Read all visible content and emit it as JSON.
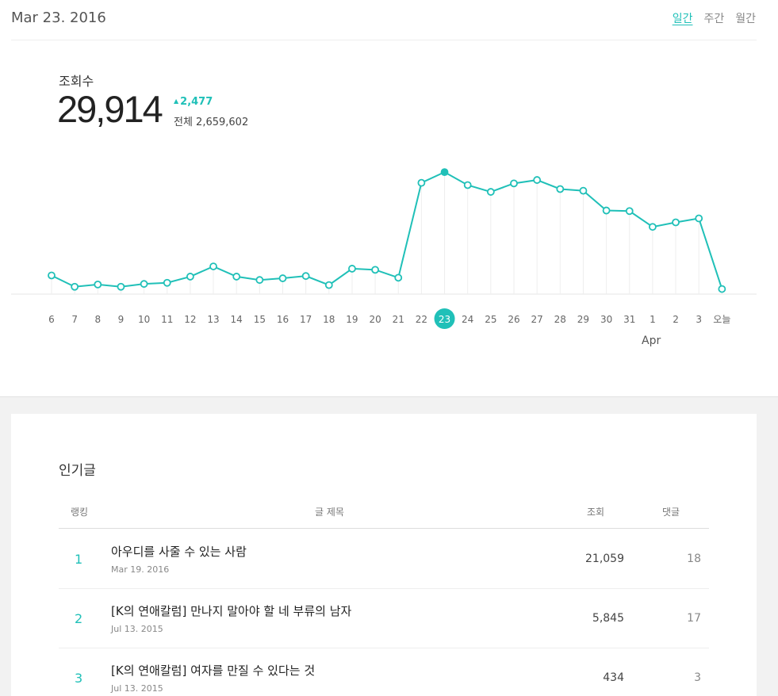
{
  "header": {
    "date": "Mar 23. 2016",
    "periods": [
      "일간",
      "주간",
      "월간"
    ],
    "active_period": "일간"
  },
  "metric": {
    "label": "조회수",
    "value": "29,914",
    "delta": "2,477",
    "total": "전체 2,659,602"
  },
  "chart_data": {
    "type": "line",
    "categories": [
      "6",
      "7",
      "8",
      "9",
      "10",
      "11",
      "12",
      "13",
      "14",
      "15",
      "16",
      "17",
      "18",
      "19",
      "20",
      "21",
      "22",
      "23",
      "24",
      "25",
      "26",
      "27",
      "28",
      "29",
      "30",
      "31",
      "1",
      "2",
      "3",
      "오늘"
    ],
    "extra_xlabel": "Apr",
    "selected": "23",
    "values": [
      3300,
      1300,
      1700,
      1300,
      1800,
      2000,
      3100,
      4900,
      3100,
      2500,
      2800,
      3200,
      1600,
      4500,
      4300,
      2900,
      19700,
      21600,
      19300,
      18100,
      19600,
      20200,
      18600,
      18300,
      14800,
      14700,
      11900,
      12700,
      13400,
      900
    ],
    "ylim": [
      0,
      24000
    ],
    "accent": "#20c0b8"
  },
  "popular": {
    "title": "인기글",
    "headers": {
      "rank": "랭킹",
      "title": "글 제목",
      "views": "조회",
      "comments": "댓글"
    },
    "rows": [
      {
        "rank": "1",
        "title": "아우디를 사줄 수 있는 사람",
        "date": "Mar 19. 2016",
        "views": "21,059",
        "comments": "18"
      },
      {
        "rank": "2",
        "title": "[K의 연애칼럼] 만나지 말아야 할 네 부류의 남자",
        "date": "Jul 13. 2015",
        "views": "5,845",
        "comments": "17"
      },
      {
        "rank": "3",
        "title": "[K의 연애칼럼] 여자를 만질 수 있다는 것",
        "date": "Jul 13. 2015",
        "views": "434",
        "comments": "3"
      }
    ]
  }
}
